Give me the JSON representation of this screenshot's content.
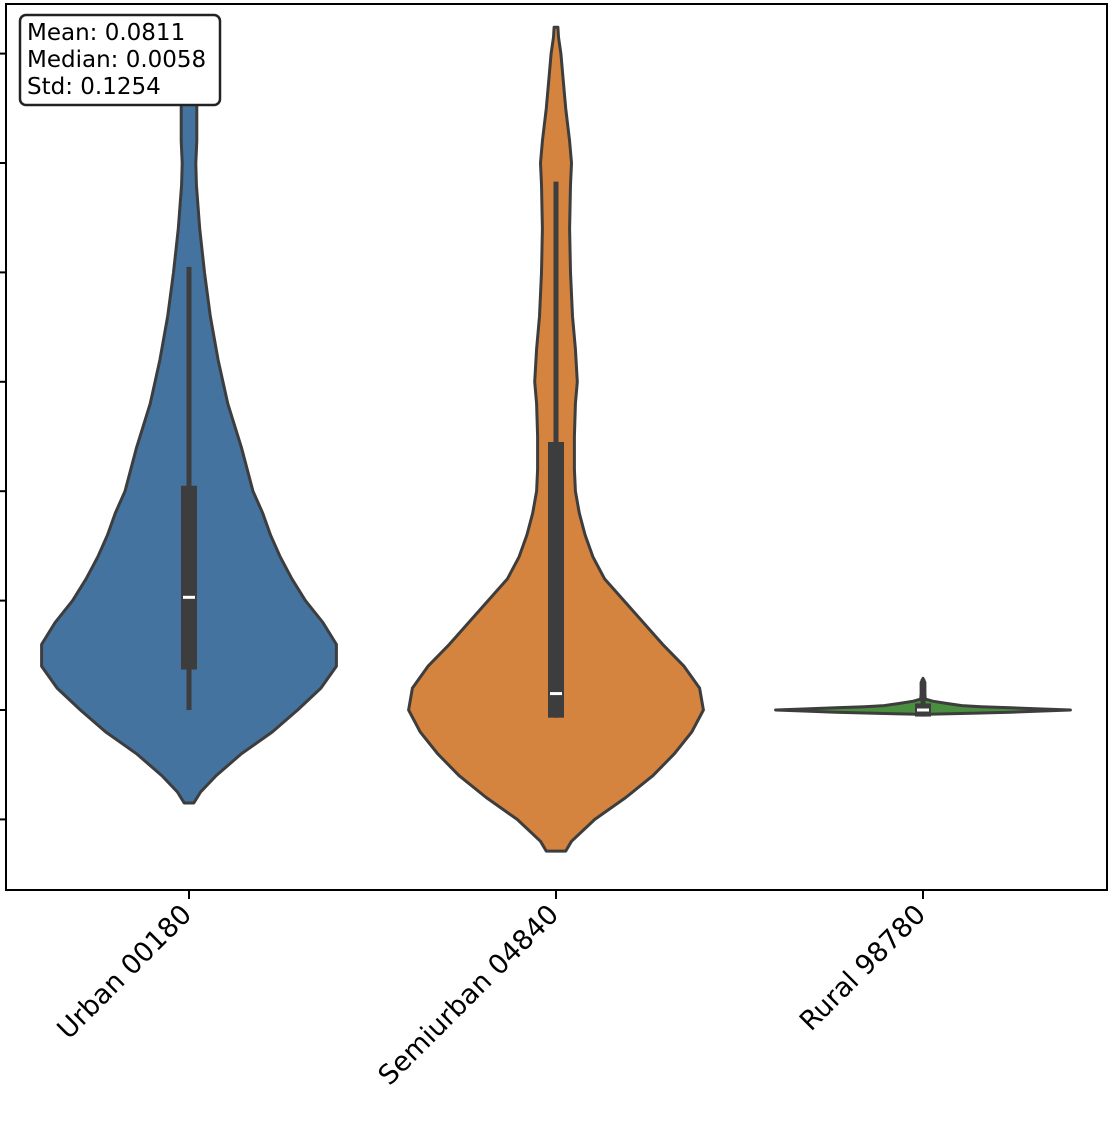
{
  "stats_box": {
    "mean": "Mean: 0.0811",
    "median": "Median: 0.0058",
    "std": "Std: 0.1254"
  },
  "chart_data": {
    "type": "violin",
    "categories": [
      "Urban 00180",
      "Semiurban 04840",
      "Rural 98780"
    ],
    "colors": [
      "#4473a0",
      "#d4843e",
      "#4a8f3f"
    ],
    "outline_color": "#3d3d3d",
    "ylim": [
      -0.16,
      0.65
    ],
    "y_ticks": [
      -0.1,
      0.0,
      0.1,
      0.2,
      0.3,
      0.4,
      0.5,
      0.6
    ],
    "y_tick_labels_shown": false,
    "violins": [
      {
        "name": "Urban 00180",
        "median": 0.103,
        "q1": 0.037,
        "q3": 0.205,
        "whisker_low": 0.0,
        "whisker_high": 0.405,
        "density": [
          [
            -0.085,
            0.025
          ],
          [
            -0.075,
            0.06
          ],
          [
            -0.06,
            0.14
          ],
          [
            -0.04,
            0.27
          ],
          [
            -0.02,
            0.43
          ],
          [
            0.0,
            0.56
          ],
          [
            0.02,
            0.68
          ],
          [
            0.04,
            0.76
          ],
          [
            0.06,
            0.76
          ],
          [
            0.08,
            0.69
          ],
          [
            0.1,
            0.6
          ],
          [
            0.12,
            0.53
          ],
          [
            0.14,
            0.47
          ],
          [
            0.16,
            0.42
          ],
          [
            0.18,
            0.38
          ],
          [
            0.2,
            0.33
          ],
          [
            0.24,
            0.27
          ],
          [
            0.28,
            0.2
          ],
          [
            0.32,
            0.15
          ],
          [
            0.36,
            0.11
          ],
          [
            0.4,
            0.08
          ],
          [
            0.44,
            0.055
          ],
          [
            0.48,
            0.038
          ],
          [
            0.5,
            0.035
          ],
          [
            0.52,
            0.04
          ],
          [
            0.54,
            0.04
          ],
          [
            0.56,
            0.04
          ],
          [
            0.58,
            0.03
          ],
          [
            0.6,
            0.01
          ]
        ]
      },
      {
        "name": "Semiurban 04840",
        "median": 0.015,
        "q1": -0.007,
        "q3": 0.245,
        "whisker_low": -0.007,
        "whisker_high": 0.483,
        "density": [
          [
            -0.129,
            0.05
          ],
          [
            -0.12,
            0.08
          ],
          [
            -0.1,
            0.2
          ],
          [
            -0.08,
            0.36
          ],
          [
            -0.06,
            0.5
          ],
          [
            -0.04,
            0.61
          ],
          [
            -0.02,
            0.7
          ],
          [
            0.0,
            0.76
          ],
          [
            0.02,
            0.74
          ],
          [
            0.04,
            0.66
          ],
          [
            0.06,
            0.55
          ],
          [
            0.08,
            0.45
          ],
          [
            0.1,
            0.35
          ],
          [
            0.12,
            0.25
          ],
          [
            0.14,
            0.19
          ],
          [
            0.16,
            0.15
          ],
          [
            0.18,
            0.12
          ],
          [
            0.2,
            0.1
          ],
          [
            0.22,
            0.095
          ],
          [
            0.25,
            0.095
          ],
          [
            0.28,
            0.1
          ],
          [
            0.3,
            0.11
          ],
          [
            0.33,
            0.1
          ],
          [
            0.36,
            0.085
          ],
          [
            0.4,
            0.075
          ],
          [
            0.44,
            0.07
          ],
          [
            0.48,
            0.075
          ],
          [
            0.5,
            0.08
          ],
          [
            0.52,
            0.07
          ],
          [
            0.55,
            0.05
          ],
          [
            0.58,
            0.035
          ],
          [
            0.6,
            0.025
          ],
          [
            0.615,
            0.013
          ],
          [
            0.624,
            0.01
          ]
        ]
      },
      {
        "name": "Rural 98780",
        "median": 0.0,
        "q1": -0.006,
        "q3": 0.006,
        "whisker_low": -0.006,
        "whisker_high": 0.028,
        "density": [
          [
            -0.004,
            0.0
          ],
          [
            -0.003,
            0.25
          ],
          [
            -0.002,
            0.45
          ],
          [
            -0.001,
            0.6
          ],
          [
            0.0,
            0.76
          ],
          [
            0.001,
            0.6
          ],
          [
            0.002,
            0.45
          ],
          [
            0.003,
            0.3
          ],
          [
            0.004,
            0.2
          ],
          [
            0.006,
            0.12
          ],
          [
            0.008,
            0.05
          ],
          [
            0.01,
            0.012
          ],
          [
            0.015,
            0.01
          ],
          [
            0.02,
            0.01
          ],
          [
            0.025,
            0.01
          ],
          [
            0.029,
            0.0
          ]
        ]
      }
    ]
  }
}
